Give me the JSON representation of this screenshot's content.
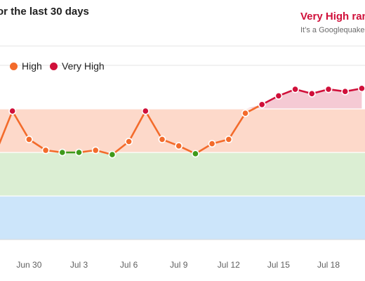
{
  "header": {
    "title": "or the last 30 days",
    "status": "Very High ran",
    "status_sub": "It’s a Googlequake"
  },
  "legend": {
    "items": [
      {
        "label": "High",
        "color": "#f36b2b"
      },
      {
        "label": "Very High",
        "color": "#d0103a"
      }
    ]
  },
  "colors": {
    "band_low": "#cce5fa",
    "band_normal": "#dbeed3",
    "band_high": "#fdd9ca",
    "band_very_high": "#f5cad4",
    "normal": "#3f9a1b",
    "high": "#f36b2b",
    "very_high": "#d0103a"
  },
  "chart_data": {
    "type": "line",
    "x_tick_labels": [
      "Jun 30",
      "Jul 3",
      "Jul 6",
      "Jul 9",
      "Jul 12",
      "Jul 15",
      "Jul 18"
    ],
    "bands": [
      {
        "name": "Low",
        "from": 0,
        "to": 1
      },
      {
        "name": "Normal",
        "from": 1,
        "to": 2
      },
      {
        "name": "High",
        "from": 2,
        "to": 3
      },
      {
        "name": "Very High",
        "from": 3,
        "to": 4
      }
    ],
    "ylim": [
      0,
      4.6
    ],
    "points": [
      {
        "v": 2.0,
        "level": "high"
      },
      {
        "v": 2.95,
        "level": "very_high"
      },
      {
        "v": 2.3,
        "level": "high"
      },
      {
        "v": 2.05,
        "level": "high"
      },
      {
        "v": 2.0,
        "level": "normal"
      },
      {
        "v": 2.0,
        "level": "normal"
      },
      {
        "v": 2.05,
        "level": "high"
      },
      {
        "v": 1.95,
        "level": "normal"
      },
      {
        "v": 2.25,
        "level": "high"
      },
      {
        "v": 2.95,
        "level": "very_high"
      },
      {
        "v": 2.3,
        "level": "high"
      },
      {
        "v": 2.15,
        "level": "high"
      },
      {
        "v": 1.97,
        "level": "normal"
      },
      {
        "v": 2.2,
        "level": "high"
      },
      {
        "v": 2.3,
        "level": "high"
      },
      {
        "v": 2.9,
        "level": "high"
      },
      {
        "v": 3.1,
        "level": "very_high"
      },
      {
        "v": 3.3,
        "level": "very_high"
      },
      {
        "v": 3.45,
        "level": "very_high"
      },
      {
        "v": 3.35,
        "level": "very_high"
      },
      {
        "v": 3.45,
        "level": "very_high"
      },
      {
        "v": 3.4,
        "level": "very_high"
      },
      {
        "v": 3.47,
        "level": "very_high"
      }
    ]
  }
}
